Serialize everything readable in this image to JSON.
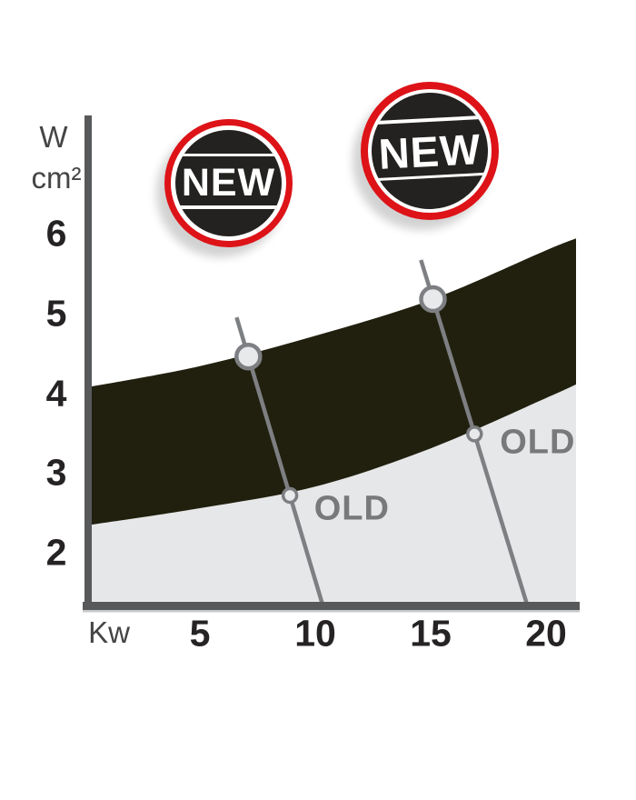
{
  "labels": {
    "y_unit_line1": "W",
    "y_unit_line2": "cm²",
    "x_unit": "Kw"
  },
  "badges": [
    {
      "label": "NEW"
    },
    {
      "label": "NEW"
    }
  ],
  "chart_data": {
    "type": "area",
    "title": "",
    "xlabel": "Kw",
    "ylabel": "W/cm²",
    "xlim": [
      0,
      21.3
    ],
    "ylim": [
      1.4,
      7.5
    ],
    "grid": false,
    "x_ticks": [
      5,
      10,
      15,
      20
    ],
    "y_ticks": [
      6,
      5,
      4,
      3,
      2
    ],
    "bands": [
      {
        "name": "OLD",
        "color": "#e6e7e8",
        "x": [
          0,
          5,
          10,
          15,
          20,
          21.3
        ],
        "top": [
          2.34,
          2.56,
          2.83,
          3.31,
          3.94,
          4.11
        ],
        "bottom": [
          1.39,
          1.39,
          1.39,
          1.39,
          1.39,
          1.39
        ]
      },
      {
        "name": "NEW",
        "color": "#21200f",
        "x": [
          0,
          5,
          10,
          15,
          20,
          21.3
        ],
        "top": [
          4.07,
          4.34,
          4.72,
          5.17,
          5.79,
          5.94
        ],
        "bottom": [
          2.34,
          2.56,
          2.83,
          3.31,
          3.94,
          4.11
        ]
      }
    ],
    "points": [
      {
        "series": "NEW",
        "x": 7.1,
        "y": 4.46,
        "size": "large"
      },
      {
        "series": "NEW",
        "x": 15.1,
        "y": 5.18,
        "size": "large"
      },
      {
        "series": "OLD",
        "x": 8.9,
        "y": 2.72,
        "size": "small"
      },
      {
        "series": "OLD",
        "x": 16.9,
        "y": 3.49,
        "size": "small"
      }
    ],
    "callouts": [
      {
        "from_point": 0,
        "to_point": 2
      },
      {
        "from_point": 1,
        "to_point": 3
      }
    ],
    "annotations": [
      {
        "text": "OLD",
        "x": 9.95,
        "y": 2.55
      },
      {
        "text": "OLD",
        "x": 18.0,
        "y": 3.38
      }
    ],
    "style": {
      "axis_color": "#58595b",
      "axis_shadow_color": "#c8c9cb",
      "callout_line_color": "#7d7f82",
      "marker_fill": "#e8e9ea",
      "marker_stroke": "#7d7f82",
      "tick_text_color": "#262324",
      "unit_text_color": "#454546",
      "old_text_color": "#77797b",
      "badge_ring_color": "#dd1318",
      "badge_disc_color": "#232220"
    }
  }
}
